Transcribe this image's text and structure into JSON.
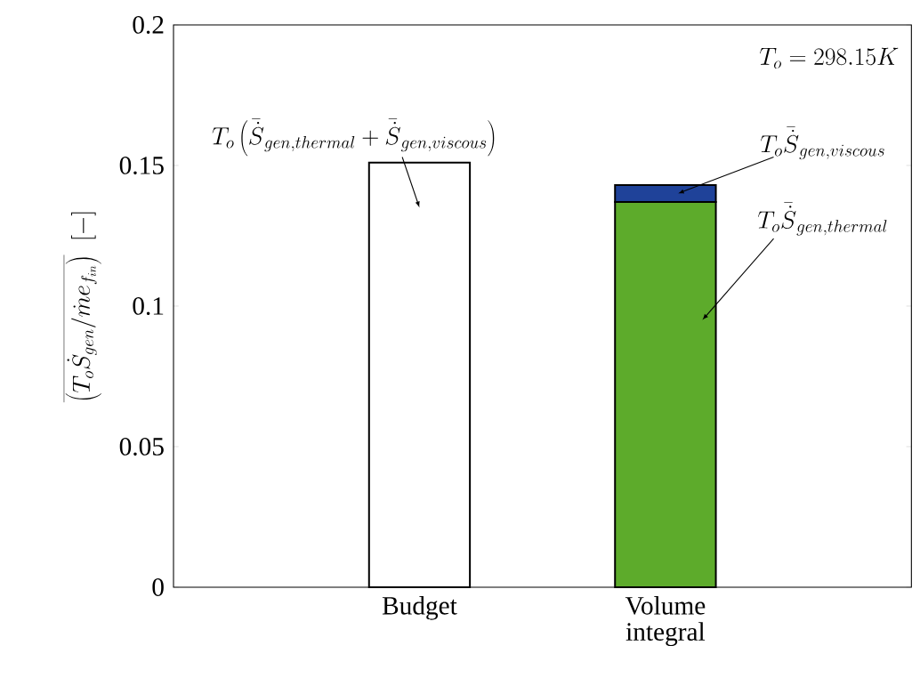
{
  "chart_data": {
    "type": "bar",
    "stacked": true,
    "categories": [
      "Budget",
      "Volume integral"
    ],
    "series": [
      {
        "colors": [
          "#ffffff",
          "#5dab2b"
        ],
        "values": [
          0.151,
          0.137
        ]
      },
      {
        "color": "#1f4299",
        "values": [
          null,
          0.006
        ]
      }
    ],
    "ylabel": "\\overline{\\left(T_o\\dot{S}_{gen}/\\dot{m}e_{f_{in}}\\right)}\\;\\;[-]",
    "ylim": [
      0,
      0.2
    ],
    "yticks": [
      0,
      0.05,
      0.1,
      0.15,
      0.2
    ],
    "grid": false,
    "annotations": [
      "T_o\\left(\\bar{\\dot{S}}_{gen,thermal}+\\bar{\\dot{S}}_{gen,viscous}\\right)",
      "T_o\\bar{\\dot{S}}_{gen,viscous}",
      "T_o\\bar{\\dot{S}}_{gen,thermal}",
      "T_o = 298.15K"
    ]
  }
}
